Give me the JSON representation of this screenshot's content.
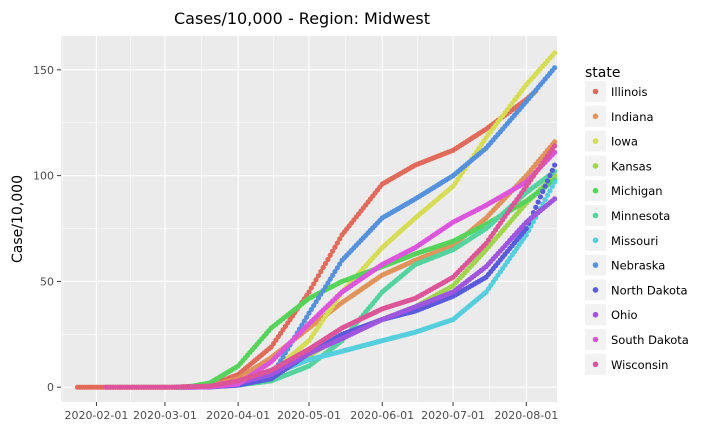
{
  "chart_data": {
    "type": "scatter",
    "title": "Cases/10,000 - Region: Midwest",
    "xlabel": "",
    "ylabel": "Case/10,000",
    "x_ticks": [
      "2020-02-01",
      "2020-03-01",
      "2020-04-01",
      "2020-05-01",
      "2020-06-01",
      "2020-07-01",
      "2020-08-01"
    ],
    "x_range": [
      "2020-01-17",
      "2020-08-14"
    ],
    "y_ticks": [
      0,
      50,
      100,
      150
    ],
    "ylim": [
      -7,
      166
    ],
    "grid": true,
    "legend": {
      "title": "state",
      "position": "right"
    },
    "series": [
      {
        "name": "Illinois",
        "color": "#E16A5A",
        "points": [
          [
            "2020-01-24",
            0
          ],
          [
            "2020-03-05",
            0
          ],
          [
            "2020-03-20",
            0.8
          ],
          [
            "2020-04-01",
            6
          ],
          [
            "2020-04-15",
            19
          ],
          [
            "2020-05-01",
            45
          ],
          [
            "2020-05-15",
            72
          ],
          [
            "2020-06-01",
            96
          ],
          [
            "2020-06-15",
            105
          ],
          [
            "2020-07-01",
            112
          ],
          [
            "2020-07-15",
            122
          ],
          [
            "2020-08-01",
            136
          ],
          [
            "2020-08-05",
            140
          ]
        ]
      },
      {
        "name": "Indiana",
        "color": "#E0935A",
        "points": [
          [
            "2020-03-06",
            0
          ],
          [
            "2020-03-20",
            0.6
          ],
          [
            "2020-04-01",
            4
          ],
          [
            "2020-04-15",
            14
          ],
          [
            "2020-05-01",
            28
          ],
          [
            "2020-05-15",
            40
          ],
          [
            "2020-06-01",
            53
          ],
          [
            "2020-06-15",
            60
          ],
          [
            "2020-07-01",
            67
          ],
          [
            "2020-07-15",
            80
          ],
          [
            "2020-08-01",
            100
          ],
          [
            "2020-08-13",
            116
          ]
        ]
      },
      {
        "name": "Iowa",
        "color": "#D7DC55",
        "points": [
          [
            "2020-03-08",
            0
          ],
          [
            "2020-03-20",
            0.4
          ],
          [
            "2020-04-01",
            2
          ],
          [
            "2020-04-15",
            7
          ],
          [
            "2020-05-01",
            22
          ],
          [
            "2020-05-15",
            45
          ],
          [
            "2020-06-01",
            66
          ],
          [
            "2020-06-15",
            80
          ],
          [
            "2020-07-01",
            95
          ],
          [
            "2020-07-15",
            118
          ],
          [
            "2020-08-01",
            143
          ],
          [
            "2020-08-13",
            158
          ]
        ]
      },
      {
        "name": "Kansas",
        "color": "#A0D64E",
        "points": [
          [
            "2020-03-07",
            0
          ],
          [
            "2020-03-20",
            0.3
          ],
          [
            "2020-04-01",
            1.5
          ],
          [
            "2020-04-15",
            5
          ],
          [
            "2020-05-01",
            15
          ],
          [
            "2020-05-15",
            24
          ],
          [
            "2020-06-01",
            32
          ],
          [
            "2020-06-15",
            38
          ],
          [
            "2020-07-01",
            48
          ],
          [
            "2020-07-15",
            65
          ],
          [
            "2020-08-01",
            87
          ],
          [
            "2020-08-13",
            100
          ]
        ]
      },
      {
        "name": "Michigan",
        "color": "#55D35A",
        "points": [
          [
            "2020-03-10",
            0
          ],
          [
            "2020-03-20",
            2
          ],
          [
            "2020-04-01",
            10
          ],
          [
            "2020-04-15",
            28
          ],
          [
            "2020-05-01",
            42
          ],
          [
            "2020-05-15",
            50
          ],
          [
            "2020-06-01",
            57
          ],
          [
            "2020-06-15",
            63
          ],
          [
            "2020-07-01",
            69
          ],
          [
            "2020-07-15",
            77
          ],
          [
            "2020-08-01",
            88
          ],
          [
            "2020-08-13",
            98
          ]
        ]
      },
      {
        "name": "Minnesota",
        "color": "#55D39F",
        "points": [
          [
            "2020-03-06",
            0
          ],
          [
            "2020-03-20",
            0.3
          ],
          [
            "2020-04-01",
            1
          ],
          [
            "2020-04-15",
            3
          ],
          [
            "2020-05-01",
            10
          ],
          [
            "2020-05-15",
            22
          ],
          [
            "2020-06-01",
            45
          ],
          [
            "2020-06-15",
            58
          ],
          [
            "2020-07-01",
            65
          ],
          [
            "2020-07-15",
            75
          ],
          [
            "2020-08-01",
            92
          ],
          [
            "2020-08-13",
            102
          ]
        ]
      },
      {
        "name": "Missouri",
        "color": "#55CEDD",
        "points": [
          [
            "2020-03-07",
            0
          ],
          [
            "2020-03-20",
            0.2
          ],
          [
            "2020-04-01",
            1.5
          ],
          [
            "2020-04-15",
            6
          ],
          [
            "2020-05-01",
            13
          ],
          [
            "2020-05-15",
            17
          ],
          [
            "2020-06-01",
            22
          ],
          [
            "2020-06-15",
            26
          ],
          [
            "2020-07-01",
            32
          ],
          [
            "2020-07-15",
            45
          ],
          [
            "2020-08-01",
            72
          ],
          [
            "2020-08-13",
            97
          ]
        ]
      },
      {
        "name": "Nebraska",
        "color": "#5591DD",
        "points": [
          [
            "2020-03-06",
            0
          ],
          [
            "2020-03-20",
            0.2
          ],
          [
            "2020-04-01",
            1
          ],
          [
            "2020-04-15",
            5
          ],
          [
            "2020-05-01",
            35
          ],
          [
            "2020-05-15",
            60
          ],
          [
            "2020-06-01",
            80
          ],
          [
            "2020-06-15",
            89
          ],
          [
            "2020-07-01",
            100
          ],
          [
            "2020-07-15",
            113
          ],
          [
            "2020-08-01",
            135
          ],
          [
            "2020-08-13",
            151
          ]
        ]
      },
      {
        "name": "North Dakota",
        "color": "#5A5ADD",
        "points": [
          [
            "2020-03-11",
            0
          ],
          [
            "2020-03-20",
            0.1
          ],
          [
            "2020-04-01",
            1
          ],
          [
            "2020-04-15",
            4
          ],
          [
            "2020-05-01",
            16
          ],
          [
            "2020-05-15",
            25
          ],
          [
            "2020-06-01",
            32
          ],
          [
            "2020-06-15",
            36
          ],
          [
            "2020-07-01",
            43
          ],
          [
            "2020-07-15",
            52
          ],
          [
            "2020-08-01",
            75
          ],
          [
            "2020-08-13",
            105
          ]
        ]
      },
      {
        "name": "Ohio",
        "color": "#9F55DD",
        "points": [
          [
            "2020-03-09",
            0
          ],
          [
            "2020-03-20",
            0.3
          ],
          [
            "2020-04-01",
            2
          ],
          [
            "2020-04-15",
            6
          ],
          [
            "2020-05-01",
            16
          ],
          [
            "2020-05-15",
            23
          ],
          [
            "2020-06-01",
            32
          ],
          [
            "2020-06-15",
            38
          ],
          [
            "2020-07-01",
            45
          ],
          [
            "2020-07-15",
            57
          ],
          [
            "2020-08-01",
            78
          ],
          [
            "2020-08-13",
            89
          ]
        ]
      },
      {
        "name": "South Dakota",
        "color": "#DD55DD",
        "points": [
          [
            "2020-03-10",
            0
          ],
          [
            "2020-03-20",
            0.2
          ],
          [
            "2020-04-01",
            1.5
          ],
          [
            "2020-04-15",
            12
          ],
          [
            "2020-05-01",
            30
          ],
          [
            "2020-05-15",
            45
          ],
          [
            "2020-06-01",
            58
          ],
          [
            "2020-06-15",
            66
          ],
          [
            "2020-07-01",
            78
          ],
          [
            "2020-07-15",
            86
          ],
          [
            "2020-08-01",
            97
          ],
          [
            "2020-08-13",
            111
          ]
        ]
      },
      {
        "name": "Wisconsin",
        "color": "#DD5599",
        "points": [
          [
            "2020-02-05",
            0
          ],
          [
            "2020-03-05",
            0
          ],
          [
            "2020-03-20",
            0.5
          ],
          [
            "2020-04-01",
            3
          ],
          [
            "2020-04-15",
            8
          ],
          [
            "2020-05-01",
            18
          ],
          [
            "2020-05-15",
            28
          ],
          [
            "2020-06-01",
            37
          ],
          [
            "2020-06-15",
            42
          ],
          [
            "2020-07-01",
            52
          ],
          [
            "2020-07-15",
            68
          ],
          [
            "2020-08-01",
            95
          ],
          [
            "2020-08-13",
            114
          ]
        ]
      }
    ]
  }
}
